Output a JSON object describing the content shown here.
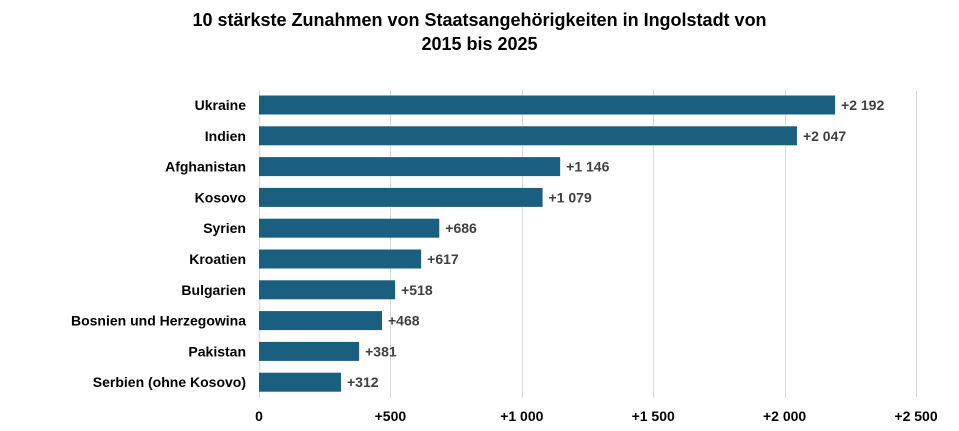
{
  "chart_data": {
    "type": "bar",
    "orientation": "horizontal",
    "title_line1": "10 stärkste Zunahmen von Staatsangehörigkeiten  in Ingolstadt von",
    "title_line2": "2015 bis 2025",
    "xlabel": "",
    "ylabel": "",
    "categories": [
      "Ukraine",
      "Indien",
      "Afghanistan",
      "Kosovo",
      "Syrien",
      "Kroatien",
      "Bulgarien",
      "Bosnien und Herzegowina",
      "Pakistan",
      "Serbien (ohne Kosovo)"
    ],
    "values": [
      2192,
      2047,
      1146,
      1079,
      686,
      617,
      518,
      468,
      381,
      312
    ],
    "value_labels": [
      "+2 192",
      "+2 047",
      "+1 146",
      "+1 079",
      "+686",
      "+617",
      "+518",
      "+468",
      "+381",
      "+312"
    ],
    "xlim": [
      0,
      2500
    ],
    "x_ticks": [
      0,
      500,
      1000,
      1500,
      2000,
      2500
    ],
    "x_tick_labels": [
      "0",
      "+500",
      "+1 000",
      "+1 500",
      "+2 000",
      "+2 500"
    ],
    "grid": "vertical",
    "legend": "none",
    "bar_color": "#1a5f80",
    "grid_color": "#d9d9d9"
  }
}
